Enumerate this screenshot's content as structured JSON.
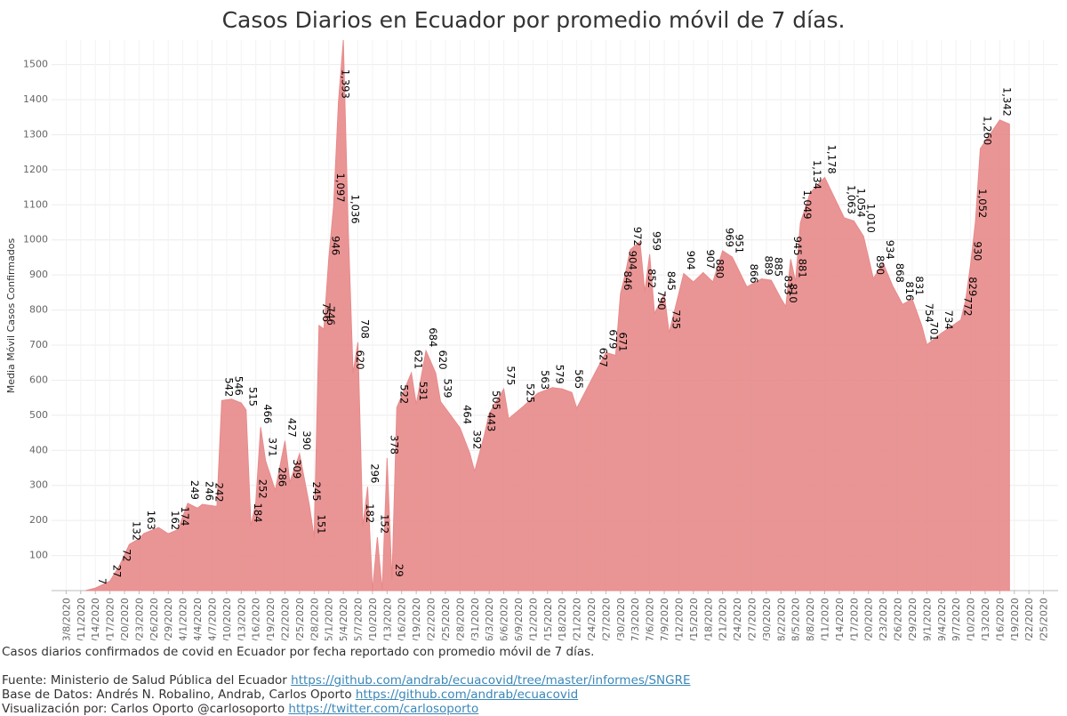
{
  "chart_data": {
    "type": "area",
    "title": "Casos Diarios en Ecuador por promedio móvil de 7 días.",
    "y_label": "Media Móvil Casos Confirmados",
    "color": "#e8898a",
    "grid": true,
    "ylim": [
      0,
      1570
    ],
    "yticks": [
      100,
      200,
      300,
      400,
      500,
      600,
      700,
      800,
      900,
      1000,
      1100,
      1200,
      1300,
      1400,
      1500
    ],
    "xlim": [
      "3/5/2020",
      "9/28/2020"
    ],
    "xticks": [
      "3/8/2020",
      "3/11/2020",
      "3/14/2020",
      "3/17/2020",
      "3/20/2020",
      "3/23/2020",
      "3/26/2020",
      "3/29/2020",
      "4/1/2020",
      "4/4/2020",
      "4/7/2020",
      "4/10/2020",
      "4/13/2020",
      "4/16/2020",
      "4/19/2020",
      "4/22/2020",
      "4/25/2020",
      "4/28/2020",
      "5/1/2020",
      "5/4/2020",
      "5/7/2020",
      "5/10/2020",
      "5/13/2020",
      "5/16/2020",
      "5/19/2020",
      "5/22/2020",
      "5/25/2020",
      "5/28/2020",
      "5/31/2020",
      "6/3/2020",
      "6/6/2020",
      "6/9/2020",
      "6/12/2020",
      "6/15/2020",
      "6/18/2020",
      "6/21/2020",
      "6/24/2020",
      "6/27/2020",
      "6/30/2020",
      "7/3/2020",
      "7/6/2020",
      "7/9/2020",
      "7/12/2020",
      "7/15/2020",
      "7/18/2020",
      "7/21/2020",
      "7/24/2020",
      "7/27/2020",
      "7/30/2020",
      "8/2/2020",
      "8/5/2020",
      "8/8/2020",
      "8/11/2020",
      "8/14/2020",
      "8/17/2020",
      "8/20/2020",
      "8/23/2020",
      "8/26/2020",
      "8/29/2020",
      "9/1/2020",
      "9/4/2020",
      "9/7/2020",
      "9/10/2020",
      "9/13/2020",
      "9/16/2020",
      "9/19/2020",
      "9/22/2020",
      "9/25/2020"
    ],
    "x": [
      "3/12/2020",
      "3/14/2020",
      "3/16/2020",
      "3/17/2020",
      "3/19/2020",
      "3/21/2020",
      "3/23/2020",
      "3/24/2020",
      "3/27/2020",
      "3/29/2020",
      "3/31/2020",
      "4/2/2020",
      "4/4/2020",
      "4/5/2020",
      "4/7/2020",
      "4/8/2020",
      "4/9/2020",
      "4/11/2020",
      "4/13/2020",
      "4/14/2020",
      "4/15/2020",
      "4/16/2020",
      "4/17/2020",
      "4/18/2020",
      "4/20/2020",
      "4/22/2020",
      "4/23/2020",
      "4/25/2020",
      "4/27/2020",
      "4/28/2020",
      "4/29/2020",
      "4/30/2020",
      "5/1/2020",
      "5/2/2020",
      "5/3/2020",
      "5/4/2020",
      "5/5/2020",
      "5/6/2020",
      "5/7/2020",
      "5/8/2020",
      "5/9/2020",
      "5/10/2020",
      "5/11/2020",
      "5/12/2020",
      "5/13/2020",
      "5/14/2020",
      "5/15/2020",
      "5/18/2020",
      "5/19/2020",
      "5/21/2020",
      "5/23/2020",
      "5/24/2020",
      "5/28/2020",
      "5/30/2020",
      "5/31/2020",
      "6/2/2020",
      "6/3/2020",
      "6/6/2020",
      "6/7/2020",
      "6/10/2020",
      "6/13/2020",
      "6/16/2020",
      "6/18/2020",
      "6/20/2020",
      "6/21/2020",
      "6/25/2020",
      "6/27/2020",
      "6/29/2020",
      "6/30/2020",
      "7/1/2020",
      "7/2/2020",
      "7/4/2020",
      "7/5/2020",
      "7/6/2020",
      "7/7/2020",
      "7/9/2020",
      "7/10/2020",
      "7/13/2020",
      "7/15/2020",
      "7/17/2020",
      "7/19/2020",
      "7/21/2020",
      "7/23/2020",
      "7/26/2020",
      "7/29/2020",
      "7/31/2020",
      "8/2/2020",
      "8/3/2020",
      "8/4/2020",
      "8/5/2020",
      "8/6/2020",
      "8/8/2020",
      "8/11/2020",
      "8/15/2020",
      "8/17/2020",
      "8/19/2020",
      "8/21/2020",
      "8/23/2020",
      "8/25/2020",
      "8/27/2020",
      "8/29/2020",
      "8/31/2020",
      "9/1/2020",
      "9/4/2020",
      "9/8/2020",
      "9/9/2020",
      "9/10/2020",
      "9/11/2020",
      "9/12/2020",
      "9/16/2020",
      "9/18/2020"
    ],
    "values": [
      0,
      7,
      20,
      27,
      72,
      132,
      148,
      163,
      180,
      162,
      174,
      249,
      235,
      246,
      242,
      240,
      542,
      546,
      535,
      515,
      184,
      252,
      466,
      371,
      286,
      427,
      309,
      390,
      245,
      151,
      756,
      746,
      946,
      1097,
      1393,
      1570,
      1036,
      620,
      708,
      182,
      296,
      0,
      152,
      0,
      378,
      29,
      522,
      621,
      531,
      684,
      620,
      539,
      464,
      392,
      340,
      443,
      505,
      575,
      490,
      525,
      563,
      579,
      575,
      565,
      520,
      627,
      679,
      671,
      846,
      904,
      972,
      995,
      852,
      959,
      790,
      845,
      735,
      904,
      880,
      907,
      880,
      969,
      951,
      866,
      889,
      885,
      833,
      810,
      945,
      881,
      1049,
      1134,
      1178,
      1063,
      1054,
      1010,
      890,
      934,
      868,
      816,
      831,
      754,
      701,
      734,
      772,
      829,
      930,
      1052,
      1260,
      1342,
      1330
    ],
    "value_labels": [
      null,
      "7",
      null,
      "27",
      "72",
      "132",
      null,
      "163",
      null,
      "162",
      "174",
      "249",
      null,
      "246",
      "242",
      null,
      "542",
      "546",
      null,
      "515",
      "184",
      "252",
      "466",
      "371",
      "286",
      "427",
      "309",
      "390",
      "245",
      "151",
      "756",
      "746",
      "946",
      "1,097",
      "1,393",
      null,
      "1,036",
      "620",
      "708",
      "182",
      "296",
      null,
      "152",
      null,
      "378",
      "29",
      "522",
      "621",
      "531",
      "684",
      "620",
      "539",
      "464",
      "392",
      null,
      "443",
      "505",
      "575",
      null,
      "525",
      "563",
      "579",
      null,
      "565",
      null,
      "627",
      "679",
      "671",
      "846",
      "904",
      "972",
      null,
      "852",
      "959",
      "790",
      "845",
      "735",
      "904",
      null,
      "907",
      "880",
      "969",
      "951",
      "866",
      "889",
      "885",
      "833",
      "810",
      "945",
      "881",
      "1,049",
      "1,134",
      "1,178",
      "1,063",
      "1,054",
      "1,010",
      "890",
      "934",
      "868",
      "816",
      "831",
      "754",
      "701",
      "734",
      "772",
      "829",
      "930",
      "1,052",
      "1,260",
      "1,342",
      null
    ],
    "caption": "Casos diarios confirmados de covid en Ecuador por fecha reportado con promedio móvil de 7 días.",
    "footer": [
      {
        "text": "Fuente: Ministerio de Salud Pública del Ecuador",
        "link": "https://github.com/andrab/ecuacovid/tree/master/informes/SNGRE"
      },
      {
        "text": "Base de Datos: Andrés N. Robalino, Andrab, Carlos Oporto",
        "link": "https://github.com/andrab/ecuacovid"
      },
      {
        "text": "Visualización por: Carlos Oporto @carlosoporto",
        "link": "https://twitter.com/carlosoporto"
      }
    ]
  }
}
